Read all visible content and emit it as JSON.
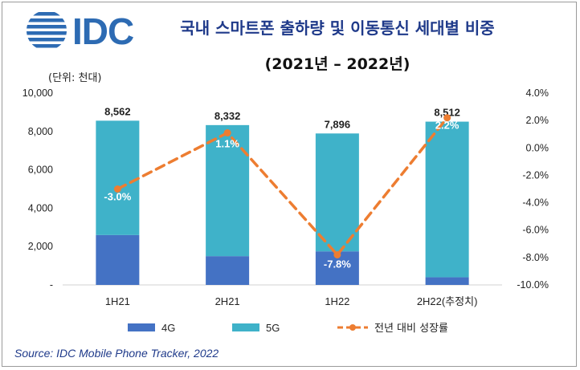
{
  "logo": {
    "text": "IDC",
    "color": "#2d6bb3"
  },
  "title": "국내 스마트폰 출하량 및 이동통신 세대별 비중",
  "subtitle": "(2021년 – 2022년)",
  "unit_label": "(단위: 천대)",
  "source": "Source: IDC Mobile Phone Tracker, 2022",
  "chart_data": {
    "type": "bar",
    "stacked": true,
    "categories": [
      "1H21",
      "2H21",
      "1H22",
      "2H22(추정치)"
    ],
    "series": [
      {
        "name": "4G",
        "values": [
          2600,
          1500,
          1750,
          400
        ],
        "color": "#4472c4"
      },
      {
        "name": "5G",
        "values": [
          5962,
          6832,
          6146,
          8112
        ],
        "color": "#3fb2c9"
      }
    ],
    "totals": [
      8562,
      8332,
      7896,
      8512
    ],
    "total_labels": [
      "8,562",
      "8,332",
      "7,896",
      "8,512"
    ],
    "line_series": {
      "name": "전년 대비 성장률",
      "values": [
        -3.0,
        1.1,
        -7.8,
        2.2
      ],
      "labels": [
        "-3.0%",
        "1.1%",
        "-7.8%",
        "2.2%"
      ],
      "color": "#ed7d31",
      "style": "dashed",
      "axis": "right"
    },
    "y_left": {
      "ylim": [
        0,
        10000
      ],
      "ticks": [
        0,
        2000,
        4000,
        6000,
        8000,
        10000
      ],
      "tick_labels": [
        "-",
        "2,000",
        "4,000",
        "6,000",
        "8,000",
        "10,000"
      ]
    },
    "y_right": {
      "ylim": [
        -10,
        4
      ],
      "ticks": [
        -10,
        -8,
        -6,
        -4,
        -2,
        0,
        2,
        4
      ],
      "tick_labels": [
        "-10.0%",
        "-8.0%",
        "-6.0%",
        "-4.0%",
        "-2.0%",
        "0.0%",
        "2.0%",
        "4.0%"
      ]
    },
    "legend_position": "bottom",
    "grid": false
  }
}
